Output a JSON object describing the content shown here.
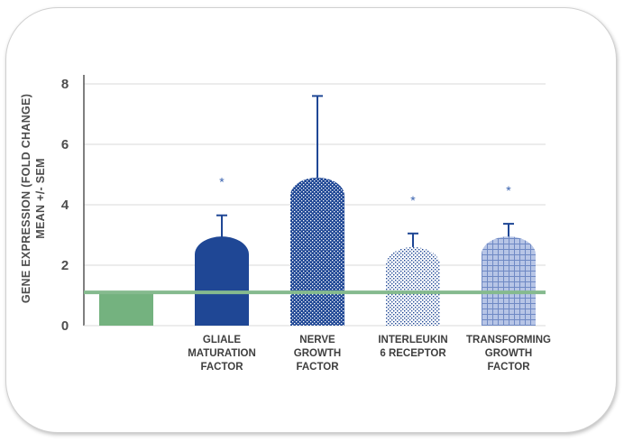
{
  "chart_data": {
    "type": "bar",
    "categories": [
      [],
      [
        "GLIALE",
        "MATURATION",
        "FACTOR"
      ],
      [
        "NERVE",
        "GROWTH",
        "FACTOR"
      ],
      [
        "INTERLEUKIN",
        "6 RECEPTOR"
      ],
      [
        "TRANSFORMING",
        "GROWTH",
        "FACTOR"
      ]
    ],
    "values": [
      1.1,
      2.95,
      4.9,
      2.6,
      2.95
    ],
    "errors": [
      0,
      0.7,
      2.7,
      0.45,
      0.42
    ],
    "significance": [
      "",
      "*",
      "",
      "*",
      "*"
    ],
    "ylabel_lines": [
      "GENE EXPRESSION (FOLD CHANGE)",
      "MEAN +/- SEM"
    ],
    "ylim": [
      0,
      8
    ],
    "yticks": [
      0,
      2,
      4,
      6,
      8
    ],
    "reference_line": 1.1,
    "grid": true,
    "colors": {
      "control": "#74b27f",
      "gmf": "#1f4795",
      "ngf": "#1f4795",
      "il6r": "#1f4795",
      "tgf": "#7d95cc",
      "error_bar": "#1f4795",
      "reference_line": "#85ba8e",
      "star": "#3a63b0",
      "axis": "#555555",
      "grid": "#d9d9d9"
    }
  }
}
